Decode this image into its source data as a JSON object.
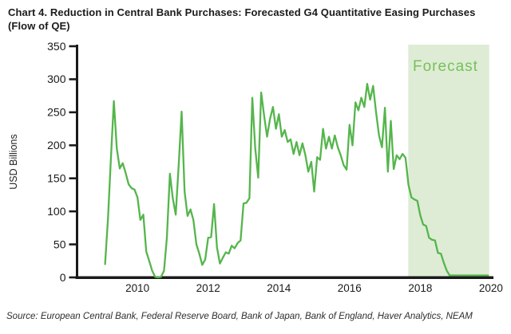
{
  "header": {
    "title": "Chart 4. Reduction in Central Bank Purchases: Forecasted G4 Quantitative Easing Purchases (Flow of QE)"
  },
  "footer": {
    "source": "Source: European Central Bank, Federal Reserve Board, Bank of Japan, Bank of England, Haver Analytics, NEAM"
  },
  "chart_data": {
    "type": "line",
    "title": "Chart 4. Reduction in Central Bank Purchases: Forecasted G4 Quantitative Easing Purchases (Flow of QE)",
    "xlabel": "",
    "ylabel": "USD Billions",
    "ylim": [
      0,
      350
    ],
    "xlim": [
      2008.28,
      2020.07
    ],
    "y_ticks": [
      0,
      50,
      100,
      150,
      200,
      250,
      300,
      350
    ],
    "x_ticks": [
      2010,
      2012,
      2014,
      2016,
      2018,
      2020
    ],
    "grid": false,
    "legend_position": "none",
    "forecast": {
      "label": "Forecast",
      "x_start": 2017.66,
      "x_end": 2019.95
    },
    "colors": {
      "line": "#55b54c",
      "forecast_fill": "#deecd5",
      "forecast_label": "#76c159",
      "axis": "#1a1a1a",
      "tick_text": "#1a1a1a"
    },
    "series": [
      {
        "name": "G4 quantitative easing purchases (flow of QE)",
        "x": [
          2009.083,
          2009.167,
          2009.25,
          2009.333,
          2009.417,
          2009.5,
          2009.583,
          2009.667,
          2009.75,
          2009.833,
          2009.917,
          2010.0,
          2010.083,
          2010.167,
          2010.25,
          2010.333,
          2010.417,
          2010.5,
          2010.583,
          2010.667,
          2010.75,
          2010.833,
          2010.917,
          2011.0,
          2011.083,
          2011.167,
          2011.25,
          2011.333,
          2011.417,
          2011.5,
          2011.583,
          2011.667,
          2011.75,
          2011.833,
          2011.917,
          2012.0,
          2012.083,
          2012.167,
          2012.25,
          2012.333,
          2012.417,
          2012.5,
          2012.583,
          2012.667,
          2012.75,
          2012.833,
          2012.917,
          2013.0,
          2013.083,
          2013.167,
          2013.25,
          2013.333,
          2013.417,
          2013.5,
          2013.583,
          2013.667,
          2013.75,
          2013.833,
          2013.917,
          2014.0,
          2014.083,
          2014.167,
          2014.25,
          2014.333,
          2014.417,
          2014.5,
          2014.583,
          2014.667,
          2014.75,
          2014.833,
          2014.917,
          2015.0,
          2015.083,
          2015.167,
          2015.25,
          2015.333,
          2015.417,
          2015.5,
          2015.583,
          2015.667,
          2015.75,
          2015.833,
          2015.917,
          2016.0,
          2016.083,
          2016.167,
          2016.25,
          2016.333,
          2016.417,
          2016.5,
          2016.583,
          2016.667,
          2016.75,
          2016.833,
          2016.917,
          2017.0,
          2017.083,
          2017.167,
          2017.25,
          2017.333,
          2017.417,
          2017.5,
          2017.583,
          2017.667,
          2017.75,
          2017.833,
          2017.917,
          2018.0,
          2018.083,
          2018.167,
          2018.25,
          2018.333,
          2018.417,
          2018.5,
          2018.583,
          2018.667,
          2018.75,
          2018.833,
          2018.917,
          2019.0,
          2019.083,
          2019.167,
          2019.25,
          2019.333,
          2019.417,
          2019.5,
          2019.583,
          2019.667,
          2019.75,
          2019.833,
          2019.917
        ],
        "y": [
          20,
          90,
          180,
          267,
          195,
          165,
          173,
          158,
          141,
          135,
          133,
          121,
          87,
          95,
          39,
          25,
          10,
          1,
          0,
          1,
          10,
          60,
          157,
          120,
          95,
          170,
          251,
          130,
          93,
          103,
          87,
          50,
          36,
          19,
          27,
          60,
          61,
          111,
          45,
          21,
          30,
          38,
          36,
          48,
          44,
          52,
          56,
          112,
          113,
          120,
          272,
          195,
          151,
          280,
          245,
          213,
          240,
          258,
          225,
          247,
          213,
          223,
          205,
          209,
          187,
          205,
          185,
          203,
          185,
          160,
          175,
          130,
          182,
          178,
          225,
          195,
          213,
          195,
          215,
          197,
          185,
          170,
          163,
          231,
          200,
          265,
          253,
          272,
          258,
          293,
          269,
          290,
          250,
          215,
          197,
          257,
          160,
          237,
          164,
          185,
          179,
          187,
          181,
          140,
          121,
          118,
          116,
          94,
          80,
          78,
          60,
          57,
          56,
          37,
          36,
          22,
          10,
          3,
          3,
          3,
          3,
          3,
          3,
          3,
          3,
          3,
          3,
          3,
          3,
          3,
          3
        ]
      }
    ]
  }
}
